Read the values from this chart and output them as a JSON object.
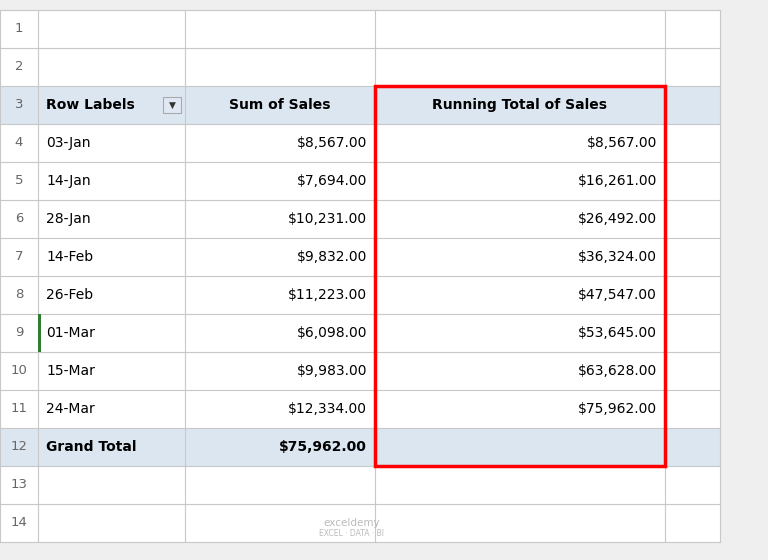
{
  "col_a_header": "Row Labels",
  "col_b_header": "Sum of Sales",
  "col_c_header": "Running Total of Sales",
  "dates": [
    "03-Jan",
    "14-Jan",
    "28-Jan",
    "14-Feb",
    "26-Feb",
    "01-Mar",
    "15-Mar",
    "24-Mar"
  ],
  "sum_of_sales": [
    "$8,567.00",
    "$7,694.00",
    "$10,231.00",
    "$9,832.00",
    "$11,223.00",
    "$6,098.00",
    "$9,983.00",
    "$12,334.00"
  ],
  "running_total": [
    "$8,567.00",
    "$16,261.00",
    "$26,492.00",
    "$36,324.00",
    "$47,547.00",
    "$53,645.00",
    "$63,628.00",
    "$75,962.00"
  ],
  "grand_total_label": "Grand Total",
  "grand_total_sum": "$75,962.00",
  "bg_color": "#ffffff",
  "grid_line_color": "#c8c8c8",
  "header_bg_color": "#dce6f1",
  "grand_total_bg_color": "#dce6f1",
  "row_num_color": "#666666",
  "header_text_color": "#000000",
  "data_text_color": "#000000",
  "red_box_color": "#ff0000",
  "watermark_color": "#bbbbbb",
  "row9_left_border_color": "#2e7d32",
  "fig_bg_color": "#efefef"
}
